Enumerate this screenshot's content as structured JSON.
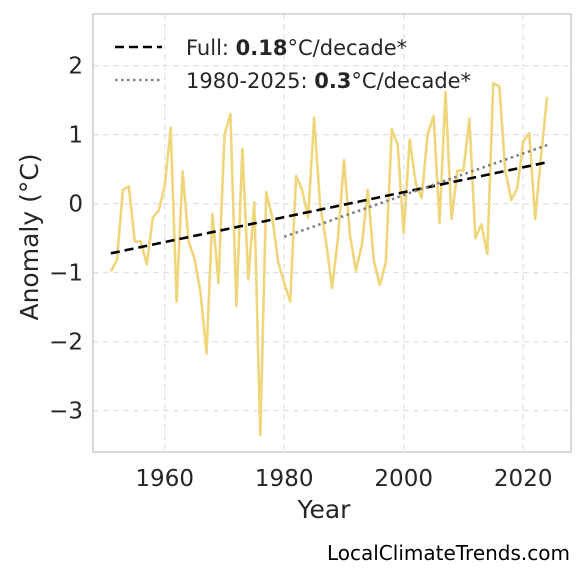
{
  "chart_data": {
    "type": "line",
    "title": "",
    "xlabel": "Year",
    "ylabel": "Anomaly (°C)",
    "xlim": [
      1948,
      2028
    ],
    "ylim": [
      -3.6,
      2.75
    ],
    "xticks": [
      1960,
      1980,
      2000,
      2020
    ],
    "yticks": [
      -3,
      -2,
      -1,
      0,
      1,
      2
    ],
    "ytick_labels": [
      "−3",
      "−2",
      "−1",
      "0",
      "1",
      "2"
    ],
    "grid": true,
    "legend_position": "top-left",
    "credit": "LocalClimateTrends.com",
    "series": [
      {
        "style": "solid",
        "color": "#f0d67a",
        "x": [
          1951,
          1952,
          1953,
          1954,
          1955,
          1956,
          1957,
          1958,
          1959,
          1960,
          1961,
          1962,
          1963,
          1964,
          1965,
          1966,
          1967,
          1968,
          1969,
          1970,
          1971,
          1972,
          1973,
          1974,
          1975,
          1976,
          1977,
          1978,
          1979,
          1980,
          1981,
          1982,
          1983,
          1984,
          1985,
          1986,
          1987,
          1988,
          1989,
          1990,
          1991,
          1992,
          1993,
          1994,
          1995,
          1996,
          1997,
          1998,
          1999,
          2000,
          2001,
          2002,
          2003,
          2004,
          2005,
          2006,
          2007,
          2008,
          2009,
          2010,
          2011,
          2012,
          2013,
          2014,
          2015,
          2016,
          2017,
          2018,
          2019,
          2020,
          2021,
          2022,
          2023,
          2024
        ],
        "values": [
          -0.98,
          -0.82,
          0.2,
          0.25,
          -0.55,
          -0.55,
          -0.88,
          -0.2,
          -0.1,
          0.25,
          1.1,
          -1.42,
          0.47,
          -0.55,
          -0.8,
          -1.3,
          -2.17,
          -0.15,
          -1.15,
          1.0,
          1.3,
          -1.48,
          0.8,
          -1.1,
          0.02,
          -3.35,
          0.17,
          -0.2,
          -0.85,
          -1.15,
          -1.42,
          0.4,
          0.2,
          -0.2,
          1.25,
          0.0,
          -0.55,
          -1.22,
          -0.5,
          0.63,
          -0.45,
          -0.97,
          -0.6,
          0.2,
          -0.82,
          -1.18,
          -0.85,
          1.08,
          0.85,
          -0.42,
          0.93,
          0.3,
          0.08,
          1.0,
          1.27,
          -0.28,
          1.62,
          -0.22,
          0.48,
          0.48,
          1.23,
          -0.5,
          -0.3,
          -0.73,
          1.75,
          1.7,
          0.48,
          0.05,
          0.22,
          0.9,
          1.02,
          -0.22,
          0.7,
          1.55
        ]
      },
      {
        "name": "Full: 0.18°C/decade*",
        "label_prefix": "Full: ",
        "label_rate": "0.18",
        "label_suffix": "°C/decade*",
        "style": "dashed",
        "color": "#000000",
        "x": [
          1951,
          2024
        ],
        "values": [
          -0.72,
          0.6
        ]
      },
      {
        "name": "1980-2025: 0.3°C/decade*",
        "label_prefix": "1980-2025: ",
        "label_rate": "0.3",
        "label_suffix": "°C/decade*",
        "style": "dotted",
        "color": "#808080",
        "x": [
          1980,
          2024
        ],
        "values": [
          -0.48,
          0.85
        ]
      }
    ]
  }
}
